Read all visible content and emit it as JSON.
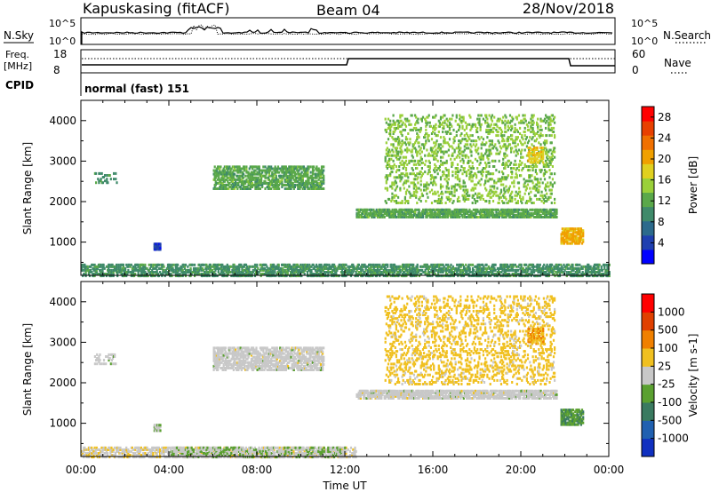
{
  "header": {
    "station": "Kapuskasing (fitACF)",
    "beam": "Beam 04",
    "date": "28/Nov/2018"
  },
  "status_panels": {
    "nsky_label": "N.Sky",
    "nsearch_label": "N.Search",
    "noise_ticks": [
      "10^5",
      "10^0"
    ],
    "freq_label_line1": "Freq.",
    "freq_label_line2": "[MHz]",
    "freq_ticks": [
      "18",
      "8"
    ],
    "nave_label": "Nave",
    "nave_ticks": [
      "60",
      "0"
    ],
    "cpid_label": "CPID",
    "cpid_text": "normal (fast) 151"
  },
  "colors": {
    "power_scale": [
      "#0000ff",
      "#1f3fb0",
      "#2c6a8c",
      "#3f8a6a",
      "#5aa84a",
      "#9ad03a",
      "#e0d020",
      "#f0a000",
      "#f07000",
      "#e84000",
      "#ff0000"
    ],
    "velocity_scale": [
      "#1030c0",
      "#2060b0",
      "#3a7a60",
      "#5aa030",
      "#c8c8c8",
      "#f0c020",
      "#f08000",
      "#e04000",
      "#ff0000"
    ]
  },
  "chart_data": [
    {
      "type": "heatmap",
      "title": "",
      "xlabel": "Time UT",
      "ylabel": "Slant Range [km]",
      "x_ticks": [
        "00:00",
        "04:00",
        "08:00",
        "12:00",
        "16:00",
        "20:00",
        "00:00"
      ],
      "y_ticks": [
        1000,
        2000,
        3000,
        4000
      ],
      "xlim_hours": [
        0,
        24
      ],
      "ylim_km": [
        180,
        4500
      ],
      "colorbar_label": "Power [dB]",
      "colorbar_ticks": [
        "4",
        "8",
        "12",
        "16",
        "20",
        "24",
        "28"
      ],
      "colorbar_range": [
        0,
        30
      ],
      "regions": [
        {
          "t0": 0.0,
          "t1": 24.0,
          "r0": 200,
          "r1": 500,
          "value": 10,
          "density": 0.55
        },
        {
          "t0": 3.3,
          "t1": 3.6,
          "r0": 850,
          "r1": 1000,
          "value": 4,
          "density": 0.9
        },
        {
          "t0": 0.6,
          "t1": 1.6,
          "r0": 2500,
          "r1": 2750,
          "value": 10,
          "density": 0.25
        },
        {
          "t0": 6.0,
          "t1": 11.0,
          "r0": 2350,
          "r1": 2900,
          "value": 12,
          "density": 0.55
        },
        {
          "t0": 12.5,
          "t1": 21.6,
          "r0": 1650,
          "r1": 1850,
          "value": 12,
          "density": 0.7
        },
        {
          "t0": 13.8,
          "t1": 21.5,
          "r0": 2000,
          "r1": 4200,
          "value": 14,
          "density": 0.2
        },
        {
          "t0": 20.3,
          "t1": 21.0,
          "r0": 3000,
          "r1": 3400,
          "value": 18,
          "density": 0.5
        },
        {
          "t0": 21.8,
          "t1": 22.8,
          "r0": 1000,
          "r1": 1400,
          "value": 20,
          "density": 0.7
        }
      ]
    },
    {
      "type": "heatmap",
      "title": "",
      "xlabel": "Time UT",
      "ylabel": "Slant Range [km]",
      "x_ticks": [
        "00:00",
        "04:00",
        "08:00",
        "12:00",
        "16:00",
        "20:00",
        "00:00"
      ],
      "y_ticks": [
        1000,
        2000,
        3000,
        4000
      ],
      "xlim_hours": [
        0,
        24
      ],
      "ylim_km": [
        180,
        4500
      ],
      "colorbar_label": "Velocity [m s-1]",
      "colorbar_ticks": [
        "1000",
        "500",
        "100",
        "25",
        "-25",
        "-100",
        "-500",
        "-1000"
      ],
      "colorbar_range": [
        -1000,
        1000
      ],
      "regions": [
        {
          "t0": 0.0,
          "t1": 12.5,
          "r0": 200,
          "r1": 450,
          "value": 60,
          "density": 0.5
        },
        {
          "t0": 4.0,
          "t1": 12.0,
          "r0": 200,
          "r1": 450,
          "value": -80,
          "density": 0.45
        },
        {
          "t0": 3.3,
          "t1": 3.6,
          "r0": 850,
          "r1": 1000,
          "value": -100,
          "density": 0.9
        },
        {
          "t0": 0.6,
          "t1": 1.6,
          "r0": 2500,
          "r1": 2750,
          "value": 0,
          "density": 0.25
        },
        {
          "t0": 6.0,
          "t1": 11.0,
          "r0": 2350,
          "r1": 2900,
          "value": 0,
          "density": 0.55
        },
        {
          "t0": 12.5,
          "t1": 21.6,
          "r0": 1650,
          "r1": 1850,
          "value": 0,
          "density": 0.7
        },
        {
          "t0": 13.8,
          "t1": 21.5,
          "r0": 2000,
          "r1": 4200,
          "value": 200,
          "density": 0.2
        },
        {
          "t0": 20.3,
          "t1": 21.0,
          "r0": 3000,
          "r1": 3400,
          "value": 300,
          "density": 0.5
        },
        {
          "t0": 21.8,
          "t1": 22.8,
          "r0": 1000,
          "r1": 1400,
          "value": -300,
          "density": 0.7
        }
      ]
    }
  ]
}
